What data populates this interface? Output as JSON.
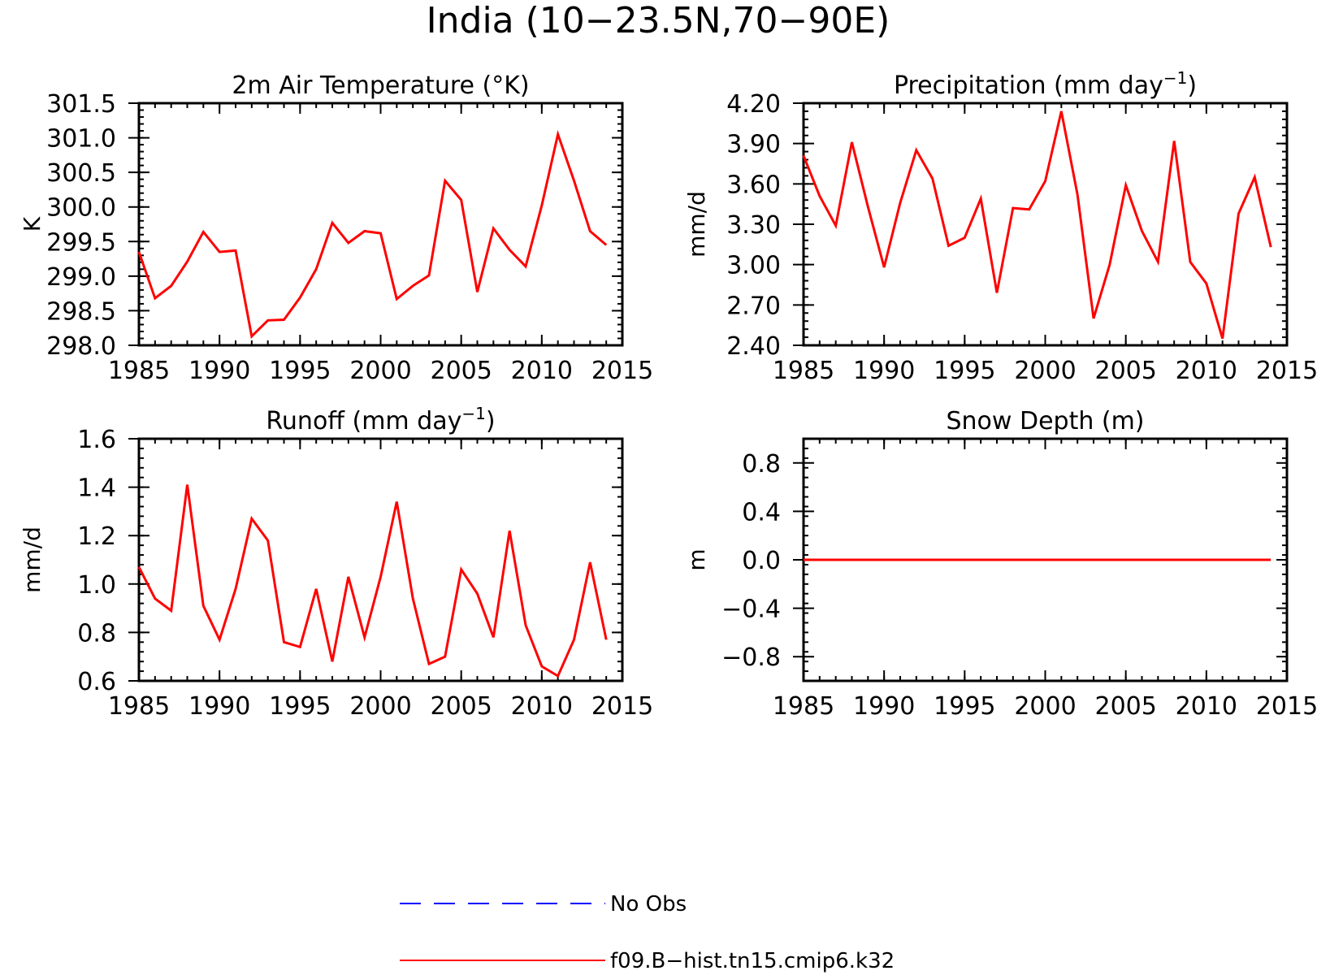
{
  "figure": {
    "title": "India (10−23.5N,70−90E)"
  },
  "legend": [
    {
      "label": "No Obs",
      "color": "#0000ff",
      "dash": true
    },
    {
      "label": "f09.B−hist.tn15.cmip6.k32",
      "color": "#ff0000",
      "dash": false
    }
  ],
  "chart_data": [
    {
      "type": "line",
      "title": "2m Air Temperature (°K)",
      "ylabel": "K",
      "xlabel": "",
      "xlim": [
        1985,
        2015
      ],
      "ylim": [
        298.0,
        301.5
      ],
      "xticks": [
        1985,
        1990,
        1995,
        2000,
        2005,
        2010,
        2015
      ],
      "yticks": [
        "298.0",
        "298.5",
        "299.0",
        "299.5",
        "300.0",
        "300.5",
        "301.0",
        "301.5"
      ],
      "x": [
        1985,
        1986,
        1987,
        1988,
        1989,
        1990,
        1991,
        1992,
        1993,
        1994,
        1995,
        1996,
        1997,
        1998,
        1999,
        2000,
        2001,
        2002,
        2003,
        2004,
        2005,
        2006,
        2007,
        2008,
        2009,
        2010,
        2011,
        2012,
        2013,
        2014
      ],
      "series": [
        {
          "name": "f09.B−hist.tn15.cmip6.k32",
          "color": "#ff0000",
          "values": [
            299.35,
            298.68,
            298.86,
            299.21,
            299.64,
            299.35,
            299.37,
            298.13,
            298.36,
            298.37,
            298.69,
            299.1,
            299.77,
            299.48,
            299.65,
            299.62,
            298.67,
            298.86,
            299.01,
            300.38,
            300.1,
            298.77,
            299.69,
            299.38,
            299.14,
            300.02,
            301.05,
            300.38,
            299.65,
            299.45
          ]
        }
      ]
    },
    {
      "type": "line",
      "title": "Precipitation (mm day",
      "title_sup": "−1",
      "title_end": ")",
      "ylabel": "mm/d",
      "xlabel": "",
      "xlim": [
        1985,
        2015
      ],
      "ylim": [
        2.4,
        4.2
      ],
      "xticks": [
        1985,
        1990,
        1995,
        2000,
        2005,
        2010,
        2015
      ],
      "yticks": [
        "2.40",
        "2.70",
        "3.00",
        "3.30",
        "3.60",
        "3.90",
        "4.20"
      ],
      "x": [
        1985,
        1986,
        1987,
        1988,
        1989,
        1990,
        1991,
        1992,
        1993,
        1994,
        1995,
        1996,
        1997,
        1998,
        1999,
        2000,
        2001,
        2002,
        2003,
        2004,
        2005,
        2006,
        2007,
        2008,
        2009,
        2010,
        2011,
        2012,
        2013,
        2014
      ],
      "series": [
        {
          "name": "f09.B−hist.tn15.cmip6.k32",
          "color": "#ff0000",
          "values": [
            3.81,
            3.51,
            3.29,
            3.91,
            3.43,
            2.98,
            3.46,
            3.85,
            3.64,
            3.14,
            3.2,
            3.49,
            2.79,
            3.42,
            3.41,
            3.62,
            4.14,
            3.52,
            2.6,
            3.0,
            3.59,
            3.25,
            3.02,
            3.92,
            3.02,
            2.86,
            2.45,
            3.38,
            3.65,
            3.13
          ]
        }
      ]
    },
    {
      "type": "line",
      "title": "Runoff (mm day",
      "title_sup": "−1",
      "title_end": ")",
      "ylabel": "mm/d",
      "xlabel": "",
      "xlim": [
        1985,
        2015
      ],
      "ylim": [
        0.6,
        1.6
      ],
      "xticks": [
        1985,
        1990,
        1995,
        2000,
        2005,
        2010,
        2015
      ],
      "yticks": [
        "0.6",
        "0.8",
        "1.0",
        "1.2",
        "1.4",
        "1.6"
      ],
      "x": [
        1985,
        1986,
        1987,
        1988,
        1989,
        1990,
        1991,
        1992,
        1993,
        1994,
        1995,
        1996,
        1997,
        1998,
        1999,
        2000,
        2001,
        2002,
        2003,
        2004,
        2005,
        2006,
        2007,
        2008,
        2009,
        2010,
        2011,
        2012,
        2013,
        2014
      ],
      "series": [
        {
          "name": "f09.B−hist.tn15.cmip6.k32",
          "color": "#ff0000",
          "values": [
            1.07,
            0.94,
            0.89,
            1.41,
            0.91,
            0.77,
            0.98,
            1.27,
            1.18,
            0.76,
            0.74,
            0.98,
            0.68,
            1.03,
            0.78,
            1.03,
            1.34,
            0.94,
            0.67,
            0.7,
            1.06,
            0.96,
            0.78,
            1.22,
            0.83,
            0.66,
            0.62,
            0.77,
            1.09,
            0.77
          ]
        }
      ]
    },
    {
      "type": "line",
      "title": "Snow Depth (m)",
      "ylabel": "m",
      "xlabel": "",
      "xlim": [
        1985,
        2015
      ],
      "ylim": [
        -1.0,
        1.0
      ],
      "xticks": [
        1985,
        1990,
        1995,
        2000,
        2005,
        2010,
        2015
      ],
      "yticks": [
        "−0.8",
        "−0.4",
        "0.0",
        "0.4",
        "0.8"
      ],
      "ytick_values": [
        -0.8,
        -0.4,
        0.0,
        0.4,
        0.8
      ],
      "x": [
        1985,
        1986,
        1987,
        1988,
        1989,
        1990,
        1991,
        1992,
        1993,
        1994,
        1995,
        1996,
        1997,
        1998,
        1999,
        2000,
        2001,
        2002,
        2003,
        2004,
        2005,
        2006,
        2007,
        2008,
        2009,
        2010,
        2011,
        2012,
        2013,
        2014
      ],
      "series": [
        {
          "name": "f09.B−hist.tn15.cmip6.k32",
          "color": "#ff0000",
          "values": [
            0,
            0,
            0,
            0,
            0,
            0,
            0,
            0,
            0,
            0,
            0,
            0,
            0,
            0,
            0,
            0,
            0,
            0,
            0,
            0,
            0,
            0,
            0,
            0,
            0,
            0,
            0,
            0,
            0,
            0
          ]
        }
      ]
    }
  ]
}
